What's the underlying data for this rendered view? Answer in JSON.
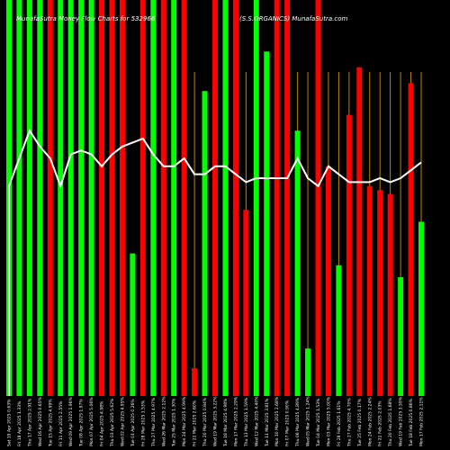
{
  "chart_data": {
    "type": "bar",
    "title_left": "MunafaSutra Money Flow Charts for 532966",
    "title_right": "(S.S.ORGANICS) MunafaSutra.com",
    "colors": {
      "up": "#00ff00",
      "down": "#ff0000",
      "line": "#ffffff",
      "guide": "#b8860b",
      "background": "#000000"
    },
    "categories": [
      "Sat 19 Apr 2025 0.63%",
      "Fri 18 Apr 2025 1.33%",
      "Thu 17 Apr 2025 2.91%",
      "Wed 16 Apr 2025 0.65%",
      "Tue 15 Apr 2025 4.99%",
      "Fri 11 Apr 2025 2.55%",
      "Wed 09 Apr 2025 1.96%",
      "Tue 08 Apr 2025 1.97%",
      "Mon 07 Apr 2025 5.06%",
      "Fri 04 Apr 2025 4.98%",
      "Thu 03 Apr 2025 5.62%",
      "Wed 02 Apr 2025 4.95%",
      "Tue 01 Apr 2025 0.26%",
      "Fri 28 Mar 2025 1.53%",
      "Thu 27 Mar 2025 4.97%",
      "Wed 26 Mar 2025 2.12%",
      "Tue 25 Mar 2025 1.30%",
      "Mon 24 Mar 2025 4.99%",
      "Fri 21 Mar 2025 2.60%",
      "Thu 20 Mar 2025 0.84%",
      "Wed 19 Mar 2025 3.22%",
      "Tue 18 Mar 2025 4.98%",
      "Mon 17 Mar 2025 2.29%",
      "Thu 13 Mar 2025 1.59%",
      "Wed 12 Mar 2025 4.40%",
      "Tue 11 Mar 2025 3.81%",
      "Mon 10 Mar 2025 2.68%",
      "Fri 07 Mar 2025 0.90%",
      "Thu 06 Mar 2025 4.89%",
      "Wed 05 Mar 2025 1.24%",
      "Tue 04 Mar 2025 1.53%",
      "Mon 03 Mar 2025 5.00%",
      "Fri 28 Feb 2025 1.61%",
      "Thu 27 Feb 2025 4.70%",
      "Tue 25 Feb 2025 0.17%",
      "Mon 24 Feb 2025 2.24%",
      "Fri 21 Feb 2025 2.03%",
      "Thu 20 Feb 2025 1.68%",
      "Wed 19 Feb 2025 3.59%",
      "Tue 18 Feb 2025 0.86%",
      "Mon 17 Feb 2025 2.11%"
    ],
    "bars": [
      {
        "dir": "up",
        "value": 100
      },
      {
        "dir": "up",
        "value": 100
      },
      {
        "dir": "up",
        "value": 100
      },
      {
        "dir": "up",
        "value": 100
      },
      {
        "dir": "down",
        "value": 100
      },
      {
        "dir": "up",
        "value": 100
      },
      {
        "dir": "up",
        "value": 100
      },
      {
        "dir": "up",
        "value": 100
      },
      {
        "dir": "up",
        "value": 100
      },
      {
        "dir": "down",
        "value": 100
      },
      {
        "dir": "down",
        "value": 100
      },
      {
        "dir": "down",
        "value": 100
      },
      {
        "dir": "up",
        "value": 36
      },
      {
        "dir": "down",
        "value": 100
      },
      {
        "dir": "up",
        "value": 100
      },
      {
        "dir": "down",
        "value": 100
      },
      {
        "dir": "up",
        "value": 100
      },
      {
        "dir": "down",
        "value": 100
      },
      {
        "dir": "down",
        "value": 7
      },
      {
        "dir": "up",
        "value": 77
      },
      {
        "dir": "down",
        "value": 100
      },
      {
        "dir": "up",
        "value": 100
      },
      {
        "dir": "down",
        "value": 100
      },
      {
        "dir": "down",
        "value": 47
      },
      {
        "dir": "up",
        "value": 100
      },
      {
        "dir": "up",
        "value": 87
      },
      {
        "dir": "down",
        "value": 100
      },
      {
        "dir": "down",
        "value": 100
      },
      {
        "dir": "up",
        "value": 67
      },
      {
        "dir": "up",
        "value": 12
      },
      {
        "dir": "down",
        "value": 100
      },
      {
        "dir": "down",
        "value": 58
      },
      {
        "dir": "up",
        "value": 33
      },
      {
        "dir": "down",
        "value": 71
      },
      {
        "dir": "down",
        "value": 83
      },
      {
        "dir": "down",
        "value": 53
      },
      {
        "dir": "down",
        "value": 52
      },
      {
        "dir": "down",
        "value": 51
      },
      {
        "dir": "up",
        "value": 30
      },
      {
        "dir": "down",
        "value": 79
      },
      {
        "dir": "up",
        "value": 44
      }
    ],
    "guide_lines": [
      false,
      false,
      false,
      false,
      false,
      false,
      false,
      false,
      false,
      false,
      false,
      false,
      false,
      false,
      false,
      false,
      false,
      false,
      true,
      false,
      true,
      true,
      true,
      true,
      true,
      true,
      true,
      true,
      true,
      true,
      true,
      true,
      true,
      true,
      true,
      true,
      true,
      true,
      true,
      true,
      true
    ],
    "line_values": [
      53,
      60,
      67,
      63,
      60,
      53,
      61,
      62,
      61,
      58,
      61,
      63,
      64,
      65,
      61,
      58,
      58,
      60,
      56,
      56,
      58,
      58,
      56,
      54,
      55,
      55,
      55,
      55,
      60,
      55,
      53,
      58,
      56,
      54,
      54,
      54,
      55,
      54,
      55,
      57,
      59
    ],
    "ylim": [
      0,
      100
    ]
  }
}
